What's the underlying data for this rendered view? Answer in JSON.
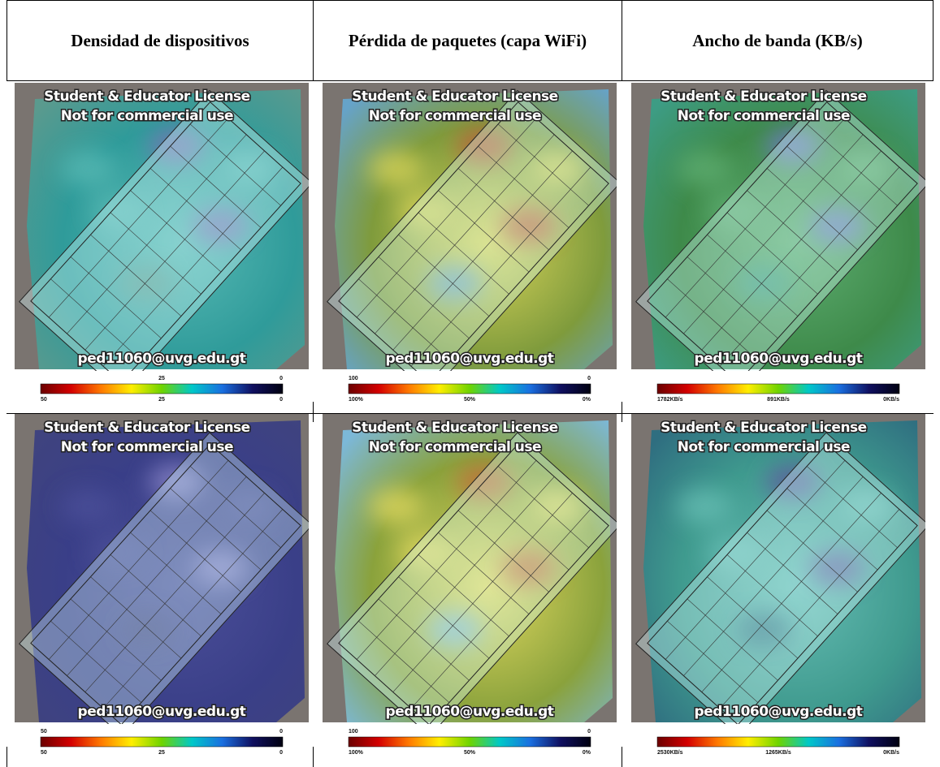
{
  "table": {
    "header": [
      "Densidad de dispositivos",
      "Pérdida de paquetes (capa WiFi)",
      "Ancho de banda (KB/s)"
    ],
    "rows": [
      [
        {
          "watermark": [
            "Student & Educator License",
            "Not for commercial use"
          ],
          "email": "ped11060@uvg.edu.gt",
          "scale_top": [
            "25",
            "0"
          ],
          "scale_bottom": [
            "50",
            "25",
            "0"
          ]
        },
        {
          "watermark": [
            "Student & Educator License",
            "Not for commercial use"
          ],
          "email": "ped11060@uvg.edu.gt",
          "scale_top": [
            "100",
            "0"
          ],
          "scale_bottom": [
            "100%",
            "50%",
            "0%"
          ]
        },
        {
          "watermark": [
            "Student & Educator License",
            "Not for commercial use"
          ],
          "email": "ped11060@uvg.edu.gt",
          "scale_top": [],
          "scale_bottom": [
            "1782KB/s",
            "891KB/s",
            "0KB/s"
          ]
        }
      ],
      [
        {
          "watermark": [
            "Student & Educator License",
            "Not for commercial use"
          ],
          "email": "ped11060@uvg.edu.gt",
          "scale_top": [
            "50",
            "0"
          ],
          "scale_bottom": [
            "50",
            "25",
            "0"
          ]
        },
        {
          "watermark": [
            "Student & Educator License",
            "Not for commercial use"
          ],
          "email": "ped11060@uvg.edu.gt",
          "scale_top": [
            "100",
            "0"
          ],
          "scale_bottom": [
            "100%",
            "50%",
            "0%"
          ]
        },
        {
          "watermark": [
            "Student & Educator License",
            "Not for commercial use"
          ],
          "email": "ped11060@uvg.edu.gt",
          "scale_top": [],
          "scale_bottom": [
            "2530KB/s",
            "1265KB/s",
            "0KB/s"
          ]
        }
      ]
    ]
  }
}
